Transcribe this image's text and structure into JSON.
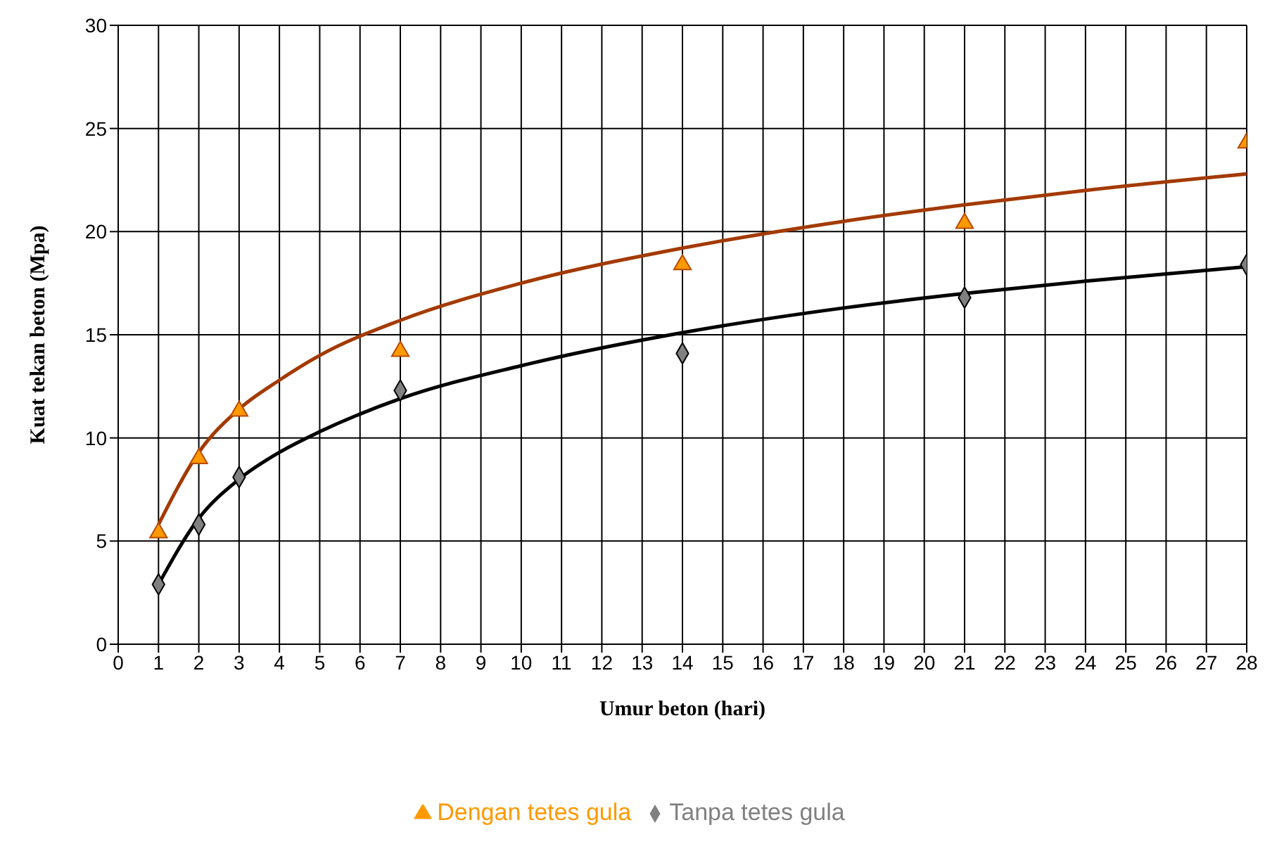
{
  "chart_data": {
    "type": "scatter",
    "xlabel": "Umur beton (hari)",
    "ylabel": "Kuat tekan beton (Mpa)",
    "x": [
      1,
      2,
      3,
      7,
      14,
      21,
      28
    ],
    "series": [
      {
        "name": "Tanpa tetes gula",
        "color": "#808080",
        "marker": "diamond",
        "values": [
          2.9,
          5.8,
          8.1,
          12.3,
          14.1,
          16.8,
          18.4
        ]
      },
      {
        "name": "Dengan tetes gula",
        "color": "#ff9900",
        "marker": "triangle",
        "values": [
          5.4,
          9.0,
          11.3,
          14.2,
          18.4,
          20.4,
          24.3
        ]
      },
      {
        "type": "line",
        "color": "#000000",
        "marker": "none",
        "x": [
          1,
          2,
          3,
          4,
          5,
          7,
          10,
          14,
          18,
          21,
          24,
          28
        ],
        "values": [
          2.9,
          6.1,
          8.0,
          9.3,
          10.3,
          11.9,
          13.5,
          15.1,
          16.3,
          17.0,
          17.6,
          18.3
        ]
      },
      {
        "type": "line",
        "color": "#a33a00",
        "marker": "none",
        "x": [
          1,
          2,
          3,
          4,
          5,
          7,
          10,
          14,
          18,
          21,
          24,
          28
        ],
        "values": [
          5.8,
          9.3,
          11.4,
          12.8,
          14.0,
          15.7,
          17.5,
          19.2,
          20.5,
          21.3,
          22.0,
          22.8
        ]
      }
    ],
    "xlim": [
      0,
      28
    ],
    "xticks": [
      0,
      1,
      2,
      3,
      4,
      5,
      6,
      7,
      8,
      9,
      10,
      11,
      12,
      13,
      14,
      15,
      16,
      17,
      18,
      19,
      20,
      21,
      22,
      23,
      24,
      25,
      26,
      27,
      28
    ],
    "ylim": [
      0,
      30
    ],
    "yticks": [
      0,
      5,
      10,
      15,
      20,
      25,
      30
    ],
    "grid": true,
    "legend": "bottom"
  }
}
